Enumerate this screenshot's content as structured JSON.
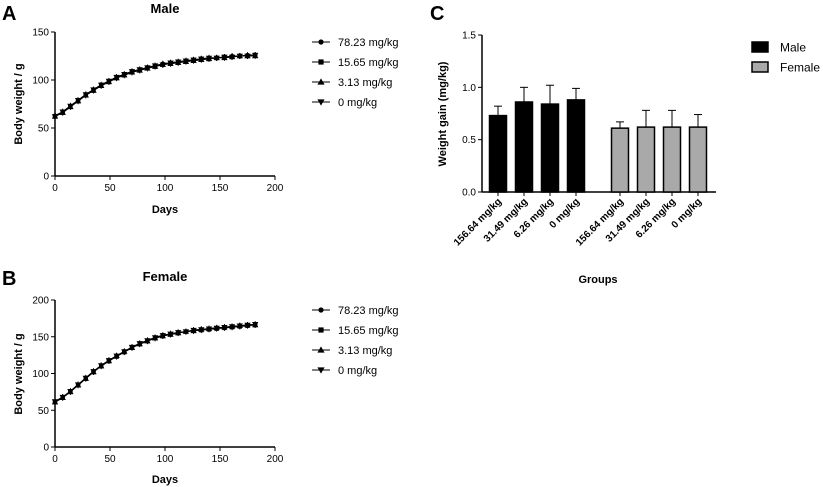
{
  "panels": {
    "a": "A",
    "b": "B",
    "c": "C"
  },
  "chart_data": [
    {
      "type": "line",
      "title": "Male",
      "xlabel": "Days",
      "ylabel": "Body weight / g",
      "xlim": [
        0,
        200
      ],
      "ylim": [
        0,
        150
      ],
      "xticks": [
        "0",
        "50",
        "100",
        "150",
        "200"
      ],
      "yticks": [
        "0",
        "50",
        "100",
        "150"
      ],
      "x": [
        0,
        7,
        14,
        21,
        28,
        35,
        42,
        49,
        56,
        63,
        70,
        77,
        84,
        91,
        98,
        105,
        112,
        119,
        126,
        133,
        140,
        147,
        154,
        161,
        168,
        175,
        182
      ],
      "series": [
        {
          "name": "78.23 mg/kg",
          "marker": "circle",
          "values": [
            63,
            67,
            73,
            79,
            85,
            90,
            95,
            99,
            103,
            106,
            109,
            111,
            113,
            115,
            117,
            118,
            119,
            120,
            121,
            122,
            123,
            123,
            124,
            125,
            125,
            126,
            126
          ]
        },
        {
          "name": "15.65 mg/kg",
          "marker": "square",
          "values": [
            62,
            66,
            72,
            78,
            84,
            89,
            94,
            98,
            102,
            105,
            108,
            110,
            113,
            114,
            116,
            117,
            118,
            120,
            121,
            122,
            122,
            123,
            124,
            124,
            125,
            125,
            126
          ]
        },
        {
          "name": "3.13 mg/kg",
          "marker": "triangle-up",
          "values": [
            62,
            66,
            72,
            78,
            84,
            89,
            94,
            98,
            102,
            105,
            108,
            110,
            112,
            114,
            116,
            117,
            118,
            119,
            120,
            121,
            122,
            123,
            123,
            124,
            125,
            125,
            125
          ]
        },
        {
          "name": "0 mg/kg",
          "marker": "triangle-down",
          "values": [
            62,
            67,
            73,
            79,
            85,
            90,
            95,
            99,
            103,
            106,
            109,
            111,
            113,
            115,
            116,
            118,
            119,
            120,
            121,
            122,
            123,
            123,
            124,
            124,
            125,
            125,
            126
          ]
        }
      ]
    },
    {
      "type": "line",
      "title": "Female",
      "xlabel": "Days",
      "ylabel": "Body weight / g",
      "xlim": [
        0,
        200
      ],
      "ylim": [
        0,
        200
      ],
      "xticks": [
        "0",
        "50",
        "100",
        "150",
        "200"
      ],
      "yticks": [
        "0",
        "50",
        "100",
        "150",
        "200"
      ],
      "x": [
        0,
        7,
        14,
        21,
        28,
        35,
        42,
        49,
        56,
        63,
        70,
        77,
        84,
        91,
        98,
        105,
        112,
        119,
        126,
        133,
        140,
        147,
        154,
        161,
        168,
        175,
        182
      ],
      "series": [
        {
          "name": "78.23 mg/kg",
          "marker": "circle",
          "values": [
            62,
            68,
            76,
            85,
            94,
            103,
            111,
            118,
            124,
            130,
            136,
            141,
            145,
            149,
            152,
            154,
            156,
            157,
            159,
            160,
            161,
            162,
            163,
            164,
            165,
            166,
            167
          ]
        },
        {
          "name": "15.65 mg/kg",
          "marker": "square",
          "values": [
            61,
            67,
            75,
            84,
            93,
            102,
            110,
            117,
            123,
            129,
            135,
            140,
            144,
            148,
            151,
            153,
            155,
            157,
            158,
            159,
            160,
            161,
            162,
            163,
            164,
            165,
            166
          ]
        },
        {
          "name": "3.13 mg/kg",
          "marker": "triangle-up",
          "values": [
            61,
            67,
            75,
            84,
            93,
            102,
            110,
            117,
            124,
            130,
            135,
            140,
            144,
            148,
            151,
            153,
            155,
            157,
            158,
            160,
            161,
            162,
            163,
            164,
            165,
            166,
            166
          ]
        },
        {
          "name": "0 mg/kg",
          "marker": "triangle-down",
          "values": [
            62,
            68,
            76,
            85,
            94,
            103,
            111,
            118,
            124,
            130,
            136,
            141,
            145,
            149,
            152,
            154,
            156,
            157,
            159,
            160,
            161,
            162,
            163,
            164,
            165,
            166,
            167
          ]
        }
      ]
    },
    {
      "type": "bar",
      "xlabel": "Groups",
      "ylabel": "Weight gain (mg/kg)",
      "ylim": [
        0,
        1.5
      ],
      "yticks": [
        "0.0",
        "0.5",
        "1.0",
        "1.5"
      ],
      "categories": [
        "156.64 mg/kg",
        "31.49 mg/kg",
        "6.26 mg/kg",
        "0 mg/kg",
        "156.64 mg/kg",
        "31.49 mg/kg",
        "6.26 mg/kg",
        "0 mg/kg"
      ],
      "groups": [
        "Male",
        "Male",
        "Male",
        "Male",
        "Female",
        "Female",
        "Female",
        "Female"
      ],
      "values": [
        0.73,
        0.86,
        0.84,
        0.88,
        0.61,
        0.62,
        0.62,
        0.62
      ],
      "errors": [
        0.09,
        0.14,
        0.18,
        0.11,
        0.06,
        0.16,
        0.16,
        0.12
      ],
      "legend": [
        {
          "name": "Male",
          "color": "#000000"
        },
        {
          "name": "Female",
          "color": "#a9a9a9"
        }
      ]
    }
  ]
}
